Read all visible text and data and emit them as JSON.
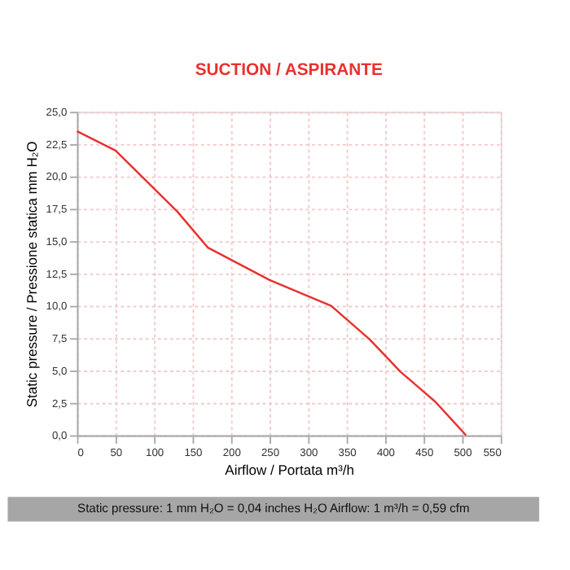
{
  "chart_data": {
    "type": "line",
    "title": "SUCTION / ASPIRANTE",
    "xlabel": "Airflow / Portata  m³/h",
    "ylabel": "Static pressure / Pressione statica  mm H₂O",
    "annotations": [
      "Static pressure: 1 mm H₂O = 0,04 inches H₂O     Airflow: 1 m³/h = 0,59 cfm"
    ],
    "x": [
      0,
      50,
      130,
      170,
      250,
      330,
      380,
      420,
      465,
      505
    ],
    "series": [
      {
        "color": "#e8312f",
        "values": [
          23.5,
          22.0,
          17.3,
          14.5,
          12.0,
          10.0,
          7.4,
          4.9,
          2.6,
          0.0
        ]
      }
    ],
    "xlim": [
      0,
      550
    ],
    "xticks": [
      0,
      50,
      100,
      150,
      200,
      250,
      300,
      350,
      400,
      450,
      500,
      550
    ],
    "ylim": [
      0,
      25
    ],
    "yticks": [
      {
        "value": 0,
        "label": "0,0"
      },
      {
        "value": 2.5,
        "label": "2,5"
      },
      {
        "value": 5,
        "label": "5,0"
      },
      {
        "value": 7.5,
        "label": "7,5"
      },
      {
        "value": 10,
        "label": "10,0"
      },
      {
        "value": 12.5,
        "label": "12,5"
      },
      {
        "value": 15,
        "label": "15,0"
      },
      {
        "value": 17.5,
        "label": "17,5"
      },
      {
        "value": 20,
        "label": "20,0"
      },
      {
        "value": 22.5,
        "label": "22,5"
      },
      {
        "value": 25,
        "label": "25,0"
      }
    ],
    "grid": true,
    "legend": false,
    "marker": "none",
    "line_style": "solid"
  }
}
